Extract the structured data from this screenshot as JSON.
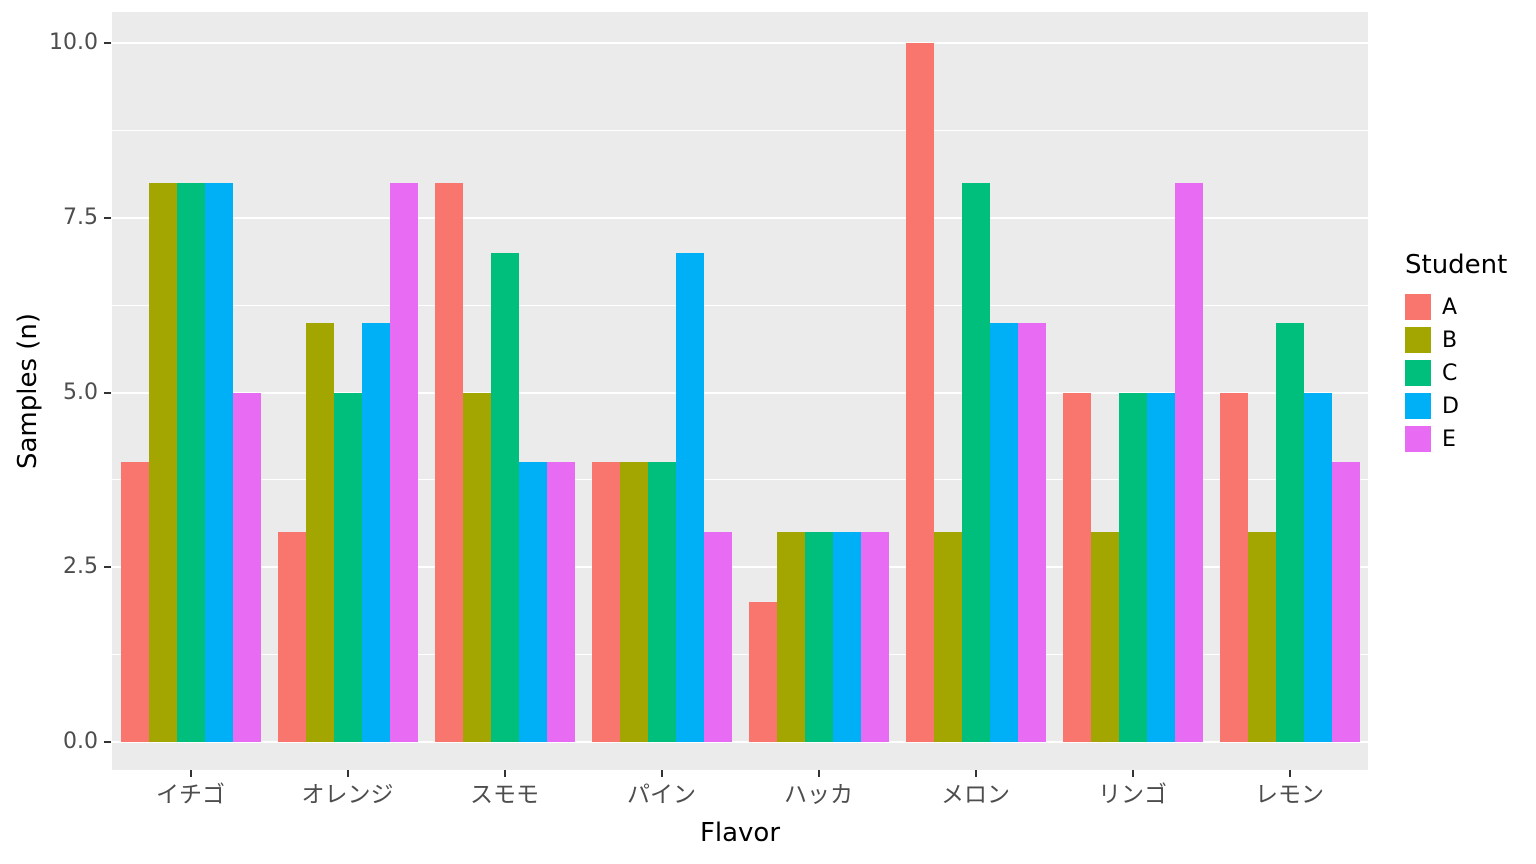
{
  "chart_data": {
    "type": "bar",
    "title": "",
    "xlabel": "Flavor",
    "ylabel": "Samples (n)",
    "categories": [
      "イチゴ",
      "オレンジ",
      "スモモ",
      "パイン",
      "ハッカ",
      "メロン",
      "リンゴ",
      "レモン"
    ],
    "series": [
      {
        "name": "A",
        "color": "#F8766D",
        "values": [
          4,
          3,
          8,
          4,
          2,
          10,
          5,
          5
        ]
      },
      {
        "name": "B",
        "color": "#A3A500",
        "values": [
          8,
          6,
          5,
          4,
          3,
          3,
          3,
          3
        ]
      },
      {
        "name": "C",
        "color": "#00BF7D",
        "values": [
          8,
          5,
          7,
          4,
          3,
          8,
          5,
          6
        ]
      },
      {
        "name": "D",
        "color": "#00B0F6",
        "values": [
          8,
          6,
          4,
          7,
          3,
          6,
          5,
          5
        ]
      },
      {
        "name": "E",
        "color": "#E76BF3",
        "values": [
          5,
          8,
          4,
          3,
          3,
          6,
          8,
          4
        ]
      }
    ],
    "ylim": [
      0,
      10
    ],
    "yticks": [
      0,
      2.5,
      5,
      7.5,
      10
    ],
    "ytick_labels": [
      "0.0",
      "2.5",
      "5.0",
      "7.5",
      "10.0"
    ],
    "legend_title": "Student",
    "legend_position": "right",
    "grid": true,
    "panel_bg": "#EBEBEB",
    "grid_color": "#FFFFFF",
    "tick_color": "#333333",
    "tick_label_color": "#4D4D4D"
  }
}
